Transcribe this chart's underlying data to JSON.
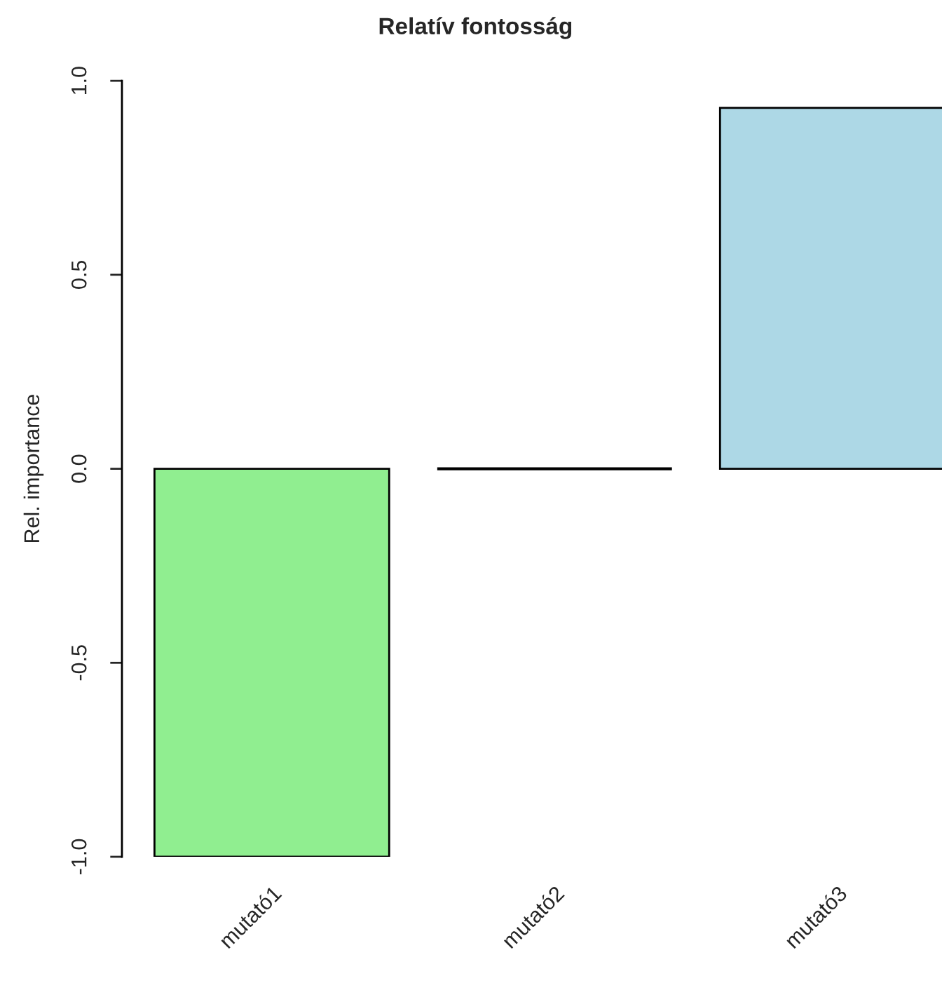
{
  "chart_data": {
    "type": "bar",
    "title": "Relatív fontosság",
    "ylabel": "Rel. importance",
    "categories": [
      "mutató1",
      "mutató2",
      "mutató3"
    ],
    "values": [
      -1.0,
      0.0,
      0.93
    ],
    "colors": [
      "#90ee90",
      "#000000",
      "#add8e6"
    ],
    "ylim": [
      -1.0,
      1.0
    ],
    "yticks": [
      {
        "value": -1.0,
        "label": "-1.0"
      },
      {
        "value": -0.5,
        "label": "-0.5"
      },
      {
        "value": 0.0,
        "label": "0.0"
      },
      {
        "value": 0.5,
        "label": "0.5"
      },
      {
        "value": 1.0,
        "label": "1.0"
      }
    ],
    "grid": false,
    "legend": false
  }
}
